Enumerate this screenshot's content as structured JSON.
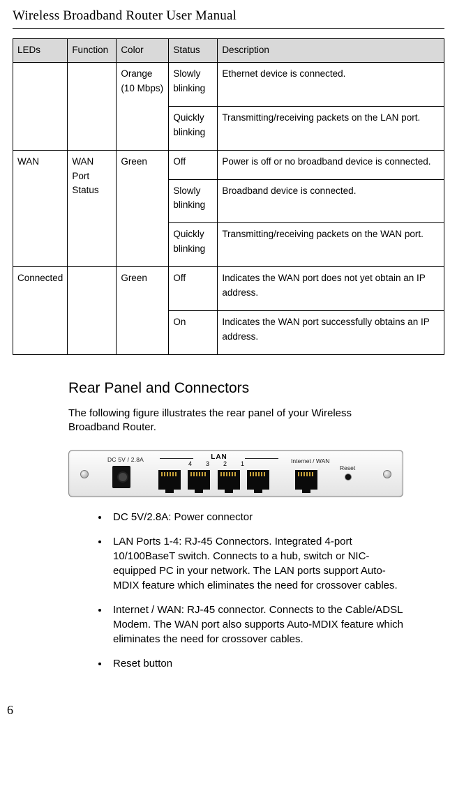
{
  "doc_title": "Wireless Broadband Router User Manual",
  "table": {
    "headers": {
      "leds": "LEDs",
      "func": "Function",
      "color": "Color",
      "status": "Status",
      "desc": "Description"
    },
    "row1": {
      "color": "Orange (10 Mbps)",
      "status_a": "Slowly blinking",
      "desc_a": "Ethernet device is connected.",
      "status_b": "Quickly blinking",
      "desc_b": "Transmitting/receiving packets on the LAN port."
    },
    "row2": {
      "leds": "WAN",
      "func": "WAN Port Status",
      "color": "Green",
      "status_a": "Off",
      "desc_a": "Power is off or no broadband device is connected.",
      "status_b": "Slowly blinking",
      "desc_b": "Broadband device is connected.",
      "status_c": "Quickly blinking",
      "desc_c": "Transmitting/receiving packets on the WAN port."
    },
    "row3": {
      "leds": "Connected",
      "color": "Green",
      "status_a": "Off",
      "desc_a": "Indicates the WAN port does not yet obtain an IP address.",
      "status_b": "On",
      "desc_b": "Indicates the WAN port successfully obtains an IP address."
    }
  },
  "section_heading": "Rear Panel and Connectors",
  "section_intro": "The following figure illustrates the rear panel of your Wireless Broadband Router.",
  "panel": {
    "dc_label": "DC 5V / 2.8A",
    "lan_label": "LAN",
    "lan_nums": "4321",
    "internet_label": "Internet / WAN",
    "reset_label": "Reset"
  },
  "bullets": {
    "b1": "DC 5V/2.8A: Power connector",
    "b2": "LAN Ports 1-4: RJ-45 Connectors. Integrated 4-port 10/100BaseT switch. Connects to a hub, switch or NIC-equipped PC in your network. The LAN ports support Auto-MDIX feature which eliminates the need for crossover cables.",
    "b3": "Internet / WAN: RJ-45 connector. Connects to the Cable/ADSL Modem. The WAN port also supports Auto-MDIX feature which eliminates the need for crossover cables.",
    "b4": "Reset button"
  },
  "page_number": "6"
}
